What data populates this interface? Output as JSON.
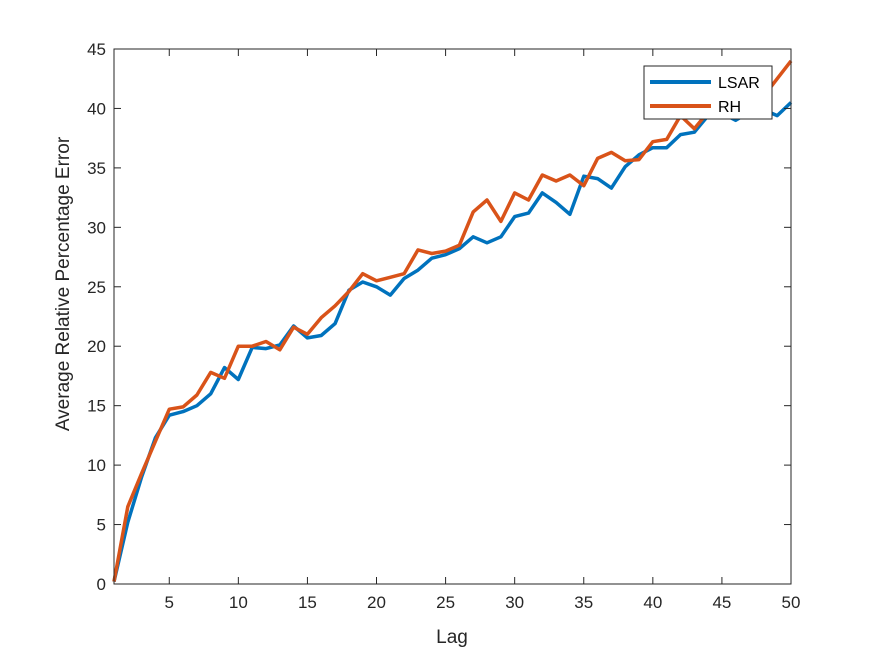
{
  "chart_data": {
    "type": "line",
    "xlabel": "Lag",
    "ylabel": "Average Relative Percentage Error",
    "xlim": [
      1,
      50
    ],
    "ylim": [
      0,
      45
    ],
    "xticks": [
      5,
      10,
      15,
      20,
      25,
      30,
      35,
      40,
      45,
      50
    ],
    "yticks": [
      0,
      5,
      10,
      15,
      20,
      25,
      30,
      35,
      40,
      45
    ],
    "grid": false,
    "legend_position": "top-right",
    "x": [
      1,
      2,
      3,
      4,
      5,
      6,
      7,
      8,
      9,
      10,
      11,
      12,
      13,
      14,
      15,
      16,
      17,
      18,
      19,
      20,
      21,
      22,
      23,
      24,
      25,
      26,
      27,
      28,
      29,
      30,
      31,
      32,
      33,
      34,
      35,
      36,
      37,
      38,
      39,
      40,
      41,
      42,
      43,
      44,
      45,
      46,
      47,
      48,
      49,
      50
    ],
    "series": [
      {
        "name": "LSAR",
        "color": "#0072BD",
        "values": [
          0.2,
          5.2,
          9.0,
          12.3,
          14.2,
          14.5,
          15.0,
          16.0,
          18.2,
          17.2,
          19.9,
          19.8,
          20.1,
          21.7,
          20.7,
          20.9,
          21.9,
          24.7,
          25.4,
          25.0,
          24.3,
          25.7,
          26.4,
          27.4,
          27.7,
          28.2,
          29.2,
          28.7,
          29.2,
          30.9,
          31.2,
          32.9,
          32.1,
          31.1,
          34.3,
          34.1,
          33.3,
          35.1,
          36.1,
          36.7,
          36.7,
          37.8,
          38.0,
          39.4,
          39.6,
          39.0,
          39.7,
          39.9,
          39.4,
          40.5
        ]
      },
      {
        "name": "RH",
        "color": "#D95319",
        "values": [
          0.2,
          6.5,
          9.3,
          12.0,
          14.7,
          14.9,
          15.9,
          17.8,
          17.3,
          20.0,
          20.0,
          20.4,
          19.7,
          21.6,
          21.0,
          22.4,
          23.4,
          24.6,
          26.1,
          25.5,
          25.8,
          26.1,
          28.1,
          27.8,
          28.0,
          28.5,
          31.3,
          32.3,
          30.5,
          32.9,
          32.3,
          34.4,
          33.9,
          34.4,
          33.5,
          35.8,
          36.3,
          35.6,
          35.7,
          37.2,
          37.4,
          39.4,
          38.3,
          39.7,
          40.1,
          41.0,
          41.5,
          41.0,
          42.5,
          44.0
        ]
      }
    ]
  }
}
